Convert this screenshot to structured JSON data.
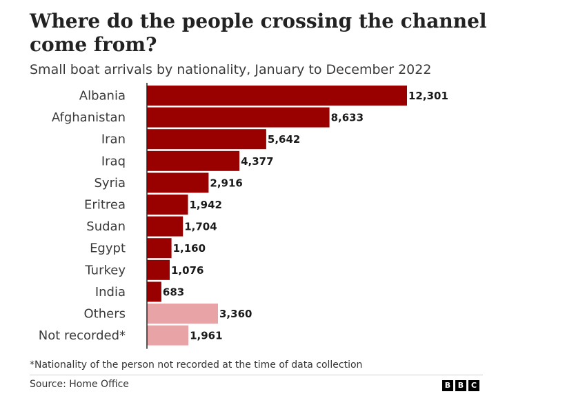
{
  "title_line1": "Where do the people crossing the channel",
  "title_line2": "come from?",
  "subtitle": "Small boat arrivals by nationality, January to December 2022",
  "footnote": "*Nationality of the person not recorded at the time of data collection",
  "source": "Source: Home Office",
  "logo_letters": [
    "B",
    "B",
    "C"
  ],
  "colors": {
    "primary_bar": "#990000",
    "secondary_bar": "#e8a3a6",
    "axis": "#222222"
  },
  "chart_data": {
    "type": "bar",
    "orientation": "horizontal",
    "title": "Where do the people crossing the channel come from?",
    "subtitle": "Small boat arrivals by nationality, January to December 2022",
    "categories": [
      "Albania",
      "Afghanistan",
      "Iran",
      "Iraq",
      "Syria",
      "Eritrea",
      "Sudan",
      "Egypt",
      "Turkey",
      "India",
      "Others",
      "Not recorded*"
    ],
    "values": [
      12301,
      8633,
      5642,
      4377,
      2916,
      1942,
      1704,
      1160,
      1076,
      683,
      3360,
      1961
    ],
    "value_labels": [
      "12,301",
      "8,633",
      "5,642",
      "4,377",
      "2,916",
      "1,942",
      "1,704",
      "1,160",
      "1,076",
      "683",
      "3,360",
      "1,961"
    ],
    "highlight": [
      "primary",
      "primary",
      "primary",
      "primary",
      "primary",
      "primary",
      "primary",
      "primary",
      "primary",
      "primary",
      "secondary",
      "secondary"
    ],
    "xlim": [
      0,
      12301
    ],
    "grid": false,
    "legend": "none"
  }
}
